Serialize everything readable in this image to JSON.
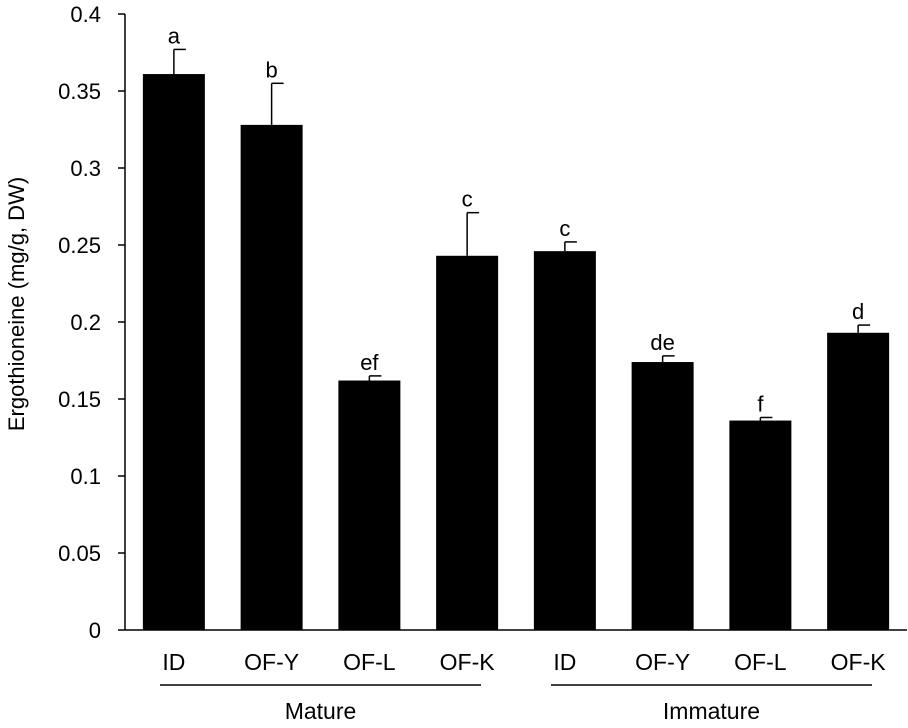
{
  "chart_data": {
    "type": "bar",
    "ylabel": "Ergothioneine (mg/g, DW)",
    "ylim": [
      0,
      0.4
    ],
    "yticks": [
      0,
      0.05,
      0.1,
      0.15,
      0.2,
      0.25,
      0.3,
      0.35,
      0.4
    ],
    "ytick_labels": [
      "0",
      "0.05",
      "0.1",
      "0.15",
      "0.2",
      "0.25",
      "0.3",
      "0.35",
      "0.4"
    ],
    "grid": false,
    "bar_color": "#000000",
    "categories": [
      "ID",
      "OF-Y",
      "OF-L",
      "OF-K",
      "ID",
      "OF-Y",
      "OF-L",
      "OF-K"
    ],
    "groups": [
      {
        "label": "Mature",
        "indices": [
          0,
          1,
          2,
          3
        ]
      },
      {
        "label": "Immature",
        "indices": [
          4,
          5,
          6,
          7
        ]
      }
    ],
    "values": [
      0.361,
      0.328,
      0.162,
      0.243,
      0.246,
      0.174,
      0.136,
      0.193
    ],
    "errors": [
      0.016,
      0.027,
      0.003,
      0.028,
      0.006,
      0.004,
      0.002,
      0.005
    ],
    "significance": [
      "a",
      "b",
      "ef",
      "c",
      "c",
      "de",
      "f",
      "d"
    ]
  }
}
